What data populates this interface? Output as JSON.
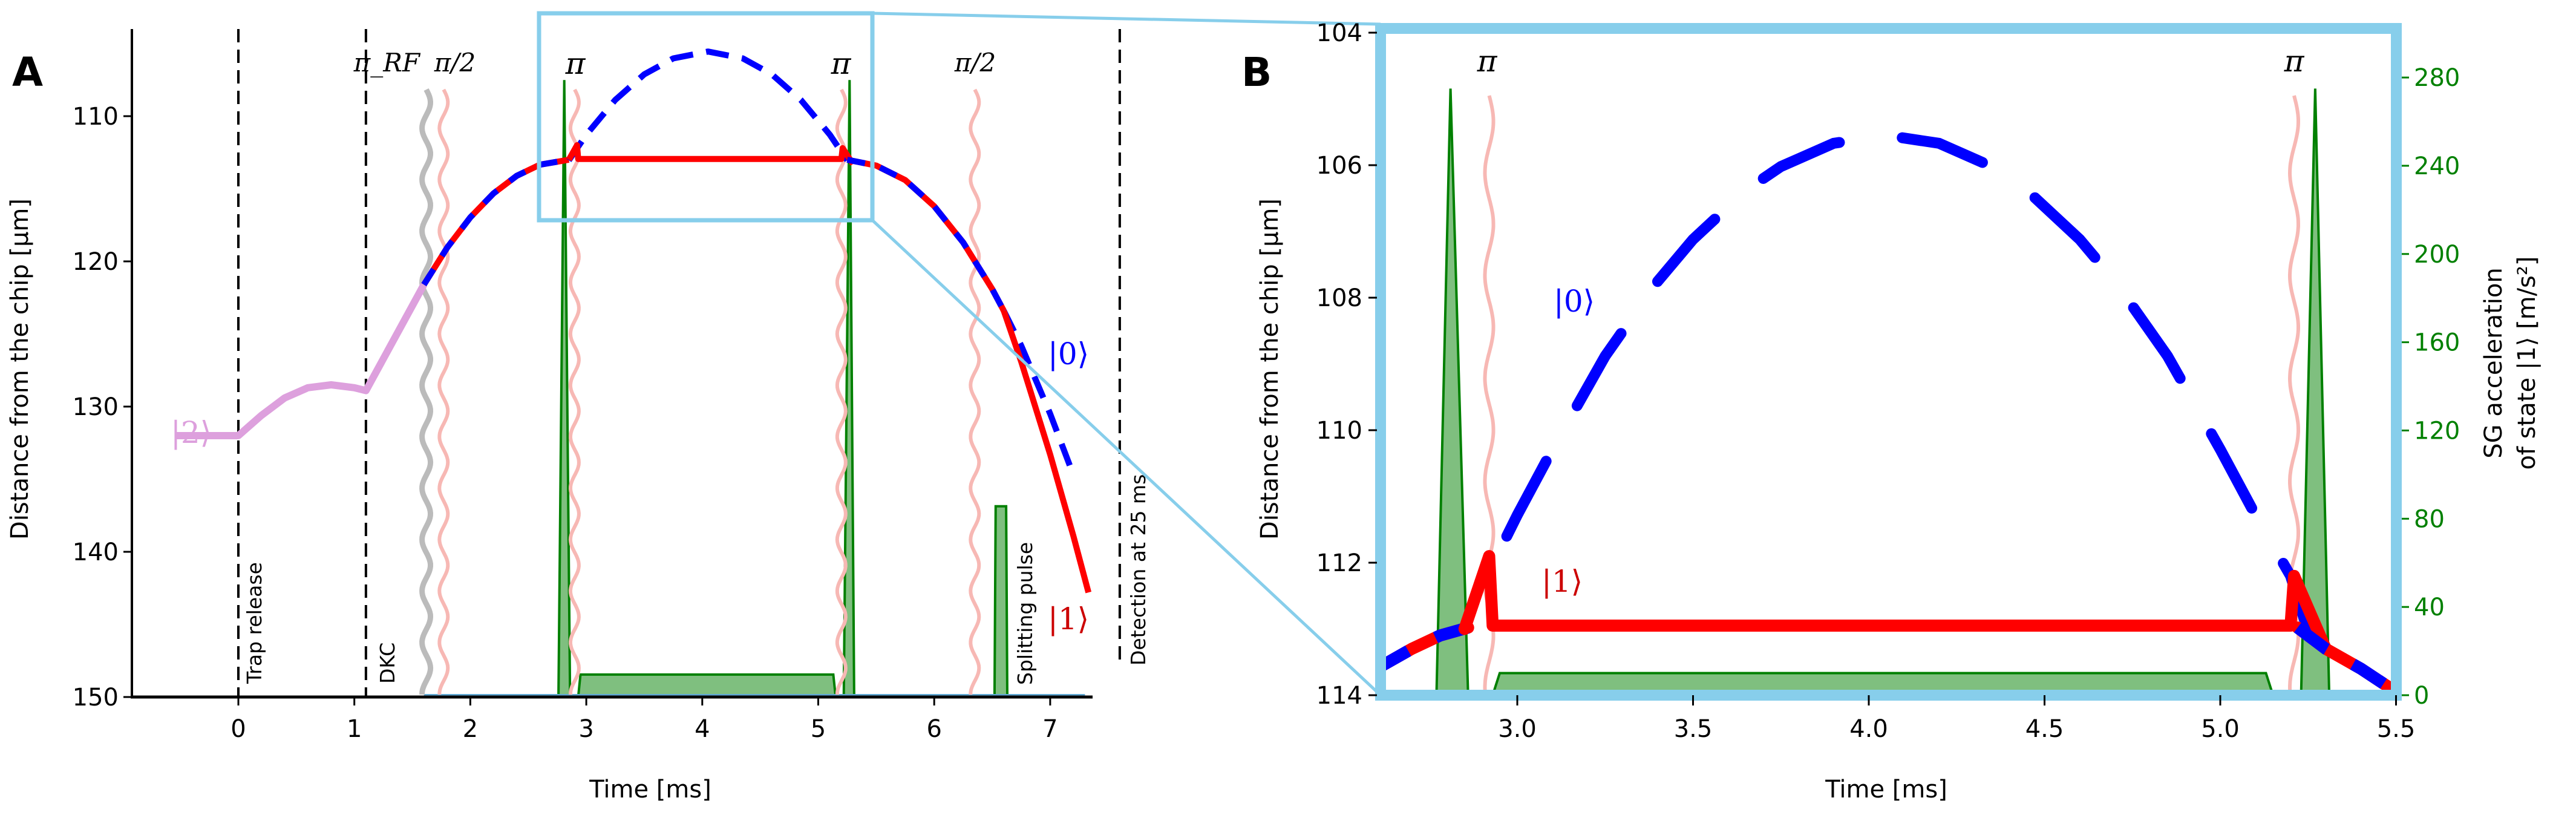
{
  "colors": {
    "state0": "#0000ff",
    "state1": "#ff0000",
    "state2": "#dda0dd",
    "sg": "#008000",
    "sg_fill": "#7fbf7f",
    "rf_pulse": "#f7b8b4",
    "dkc_pulse": "#bbbbbb",
    "inset": "#87ceeb"
  },
  "panels": {
    "a": "A",
    "b": "B"
  },
  "annotations": {
    "trap_release": "Trap release",
    "dkc": "DKC",
    "splitting_pulse": "Splitting pulse",
    "detection": "Detection at 25 ms"
  },
  "pulses": {
    "pi": "π",
    "half_num": "π",
    "half_den": "2",
    "rf_main": "π",
    "rf_sub": "RF"
  },
  "kets": {
    "k0": "|0⟩",
    "k1": "|1⟩",
    "k2": "|2⟩"
  },
  "chart_data": [
    {
      "type": "line",
      "panel": "A",
      "xlabel": "Time [ms]",
      "ylabel": "Distance from the chip [µm]",
      "xlim": [
        -0.92,
        7.36
      ],
      "ylim": [
        150,
        104
      ],
      "xticks": [
        "0",
        "1",
        "2",
        "3",
        "4",
        "5",
        "6",
        "7"
      ],
      "yticks": [
        "110",
        "120",
        "130",
        "140",
        "150"
      ],
      "vlines": [
        {
          "t": 0,
          "label": "Trap release"
        },
        {
          "t": 1.1,
          "label": "DKC"
        },
        {
          "t": 7.6,
          "label": "Detection at 25 ms"
        }
      ],
      "rf_pulses": [
        {
          "t": 1.62,
          "kind": "dkc",
          "label": "π_RF"
        },
        {
          "t": 1.77,
          "kind": "rf",
          "label": "π/2"
        },
        {
          "t": 2.9,
          "kind": "rf",
          "label": "π"
        },
        {
          "t": 5.2,
          "kind": "rf",
          "label": "π"
        },
        {
          "t": 6.35,
          "kind": "rf",
          "label": "π/2"
        }
      ],
      "series": [
        {
          "name": "|2⟩",
          "points": [
            [
              -0.55,
              132
            ],
            [
              0,
              132
            ],
            [
              0.2,
              130.6
            ],
            [
              0.4,
              129.4
            ],
            [
              0.6,
              128.7
            ],
            [
              0.8,
              128.5
            ],
            [
              1.0,
              128.7
            ],
            [
              1.1,
              128.9
            ],
            [
              1.6,
              121.6
            ]
          ]
        },
        {
          "name": "common",
          "points": [
            [
              1.6,
              121.6
            ],
            [
              1.8,
              119.06
            ],
            [
              2.0,
              116.97
            ],
            [
              2.2,
              115.32
            ],
            [
              2.4,
              114.11
            ],
            [
              2.6,
              113.34
            ],
            [
              2.85,
              113
            ]
          ]
        },
        {
          "name": "|0⟩",
          "points": [
            [
              2.85,
              113.04
            ],
            [
              3.0,
              111.28
            ],
            [
              3.25,
              108.88
            ],
            [
              3.5,
              107.12
            ],
            [
              3.75,
              106.02
            ],
            [
              4.05,
              105.55
            ],
            [
              4.35,
              106.02
            ],
            [
              4.6,
              107.12
            ],
            [
              4.85,
              108.88
            ],
            [
              5.1,
              111.28
            ],
            [
              5.25,
              113.04
            ]
          ]
        },
        {
          "name": "|1⟩",
          "points": [
            [
              2.85,
              113
            ],
            [
              2.92,
              112.0
            ],
            [
              2.93,
              112.95
            ],
            [
              5.2,
              112.95
            ],
            [
              5.21,
              112.2
            ],
            [
              5.3,
              113.3
            ]
          ]
        },
        {
          "name": "common-fall",
          "points": [
            [
              5.25,
              113
            ],
            [
              5.5,
              113.4
            ],
            [
              5.75,
              114.4
            ],
            [
              6.0,
              116.2
            ],
            [
              6.25,
              118.7
            ],
            [
              6.5,
              121.9
            ],
            [
              6.6,
              123.4
            ]
          ]
        },
        {
          "name": "|0⟩-fall",
          "points": [
            [
              6.6,
              123.4
            ],
            [
              6.75,
              125.8
            ],
            [
              7.0,
              130.5
            ],
            [
              7.2,
              134.7
            ]
          ]
        },
        {
          "name": "|1⟩-fall",
          "points": [
            [
              6.6,
              123.4
            ],
            [
              6.75,
              126.9
            ],
            [
              7.0,
              133.3
            ],
            [
              7.2,
              138.9
            ],
            [
              7.33,
              142.8
            ]
          ]
        }
      ],
      "sg_acceleration": [
        [
          [
            2.76,
            0
          ],
          [
            2.81,
            275
          ],
          [
            2.86,
            0
          ]
        ],
        [
          [
            2.93,
            0
          ],
          [
            2.95,
            10
          ],
          [
            5.13,
            10
          ],
          [
            5.15,
            0
          ]
        ],
        [
          [
            5.22,
            0
          ],
          [
            5.27,
            275
          ],
          [
            5.31,
            0
          ]
        ],
        [
          [
            6.52,
            0
          ],
          [
            6.53,
            85
          ],
          [
            6.62,
            85
          ],
          [
            6.63,
            0
          ]
        ]
      ],
      "inset_region": {
        "t": [
          2.59,
          5.47
        ],
        "d": [
          103.8,
          117.2
        ]
      }
    },
    {
      "type": "line",
      "panel": "B",
      "xlabel": "Time [ms]",
      "ylabel": "Distance from the chip [µm]",
      "y2label_line1": "SG acceleration",
      "y2label_line2": "of state |1⟩ [m/s²]",
      "xlim": [
        2.61,
        5.5
      ],
      "ylim": [
        114,
        104
      ],
      "y2lim": [
        0,
        300
      ],
      "xticks": [
        "3.0",
        "3.5",
        "4.0",
        "4.5",
        "5.0",
        "5.5"
      ],
      "yticks": [
        "104",
        "106",
        "108",
        "110",
        "112",
        "114"
      ],
      "y2ticks": [
        "0",
        "40",
        "80",
        "120",
        "160",
        "200",
        "240",
        "280"
      ],
      "rf_pulses": [
        {
          "t": 2.92,
          "label": "π"
        },
        {
          "t": 5.21,
          "label": "π"
        }
      ],
      "series": [
        {
          "name": "common-left",
          "points": [
            [
              2.6,
              113.6
            ],
            [
              2.7,
              113.3
            ],
            [
              2.78,
              113.1
            ],
            [
              2.86,
              112.98
            ]
          ]
        },
        {
          "name": "|0⟩",
          "points": [
            [
              2.97,
              111.6
            ],
            [
              3.0,
              111.28
            ],
            [
              3.1,
              110.29
            ],
            [
              3.25,
              108.88
            ],
            [
              3.4,
              107.75
            ],
            [
              3.5,
              107.12
            ],
            [
              3.65,
              106.38
            ],
            [
              3.75,
              106.02
            ],
            [
              3.9,
              105.67
            ],
            [
              4.05,
              105.55
            ],
            [
              4.2,
              105.67
            ],
            [
              4.35,
              106.02
            ],
            [
              4.45,
              106.38
            ],
            [
              4.6,
              107.12
            ],
            [
              4.7,
              107.75
            ],
            [
              4.85,
              108.88
            ],
            [
              5.0,
              110.29
            ],
            [
              5.1,
              111.28
            ],
            [
              5.2,
              112.2
            ],
            [
              5.25,
              113.04
            ]
          ]
        },
        {
          "name": "|1⟩",
          "points": [
            [
              2.85,
              113
            ],
            [
              2.92,
              111.9
            ],
            [
              2.93,
              112.95
            ],
            [
              5.2,
              112.95
            ],
            [
              5.21,
              112.2
            ],
            [
              5.3,
              113.3
            ]
          ]
        },
        {
          "name": "common-right",
          "points": [
            [
              5.22,
              112.98
            ],
            [
              5.3,
              113.3
            ],
            [
              5.4,
              113.6
            ],
            [
              5.5,
              113.95
            ]
          ]
        }
      ],
      "sg_acceleration": [
        [
          [
            2.77,
            0
          ],
          [
            2.81,
            275
          ],
          [
            2.86,
            0
          ]
        ],
        [
          [
            2.93,
            0
          ],
          [
            2.95,
            10
          ],
          [
            5.13,
            10
          ],
          [
            5.15,
            0
          ]
        ],
        [
          [
            5.23,
            0
          ],
          [
            5.27,
            275
          ],
          [
            5.31,
            0
          ]
        ]
      ]
    }
  ]
}
